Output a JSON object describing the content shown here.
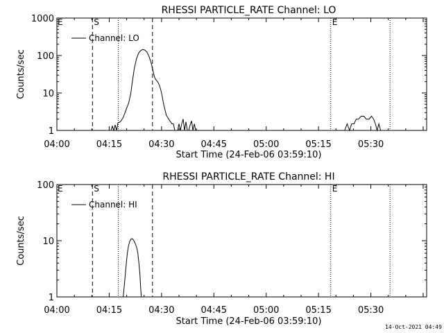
{
  "footer_timestamp": "14-Oct-2021 04:49",
  "chart_data": [
    {
      "type": "line",
      "title": "RHESSI PARTICLE_RATE Channel: LO",
      "xlabel": "Start Time (24-Feb-06 03:59:10)",
      "ylabel": "Counts/sec",
      "y_scale": "log",
      "xlim_min": [
        0,
        106
      ],
      "ylim": [
        1,
        1000
      ],
      "x_ticks": [
        "04:00",
        "04:15",
        "04:30",
        "04:45",
        "05:00",
        "05:15",
        "05:30"
      ],
      "y_ticks": [
        "1",
        "10",
        "100",
        "1000"
      ],
      "legend": "Channel: LO",
      "legend_position": "top-left",
      "markers": [
        {
          "label": "S",
          "x_min": 10.2,
          "style": "dashed"
        },
        {
          "label": "",
          "x_min": 17.6,
          "style": "dotted"
        },
        {
          "label": "",
          "x_min": 27.4,
          "style": "dashed"
        },
        {
          "label": "E",
          "x_min": 78.5,
          "style": "dotted"
        },
        {
          "label": "",
          "x_min": 95.5,
          "style": "dotted"
        }
      ],
      "edge_labels": [
        "E"
      ],
      "series": [
        {
          "values_xy": [
            [
              15.5,
              1
            ],
            [
              15.9,
              1.3
            ],
            [
              16.3,
              1
            ],
            [
              16.7,
              1.4
            ],
            [
              17.1,
              1
            ],
            [
              17.5,
              1.6
            ],
            [
              18.2,
              1.7
            ],
            [
              19.0,
              2.2
            ],
            [
              19.8,
              3.5
            ],
            [
              20.6,
              5.5
            ],
            [
              21.2,
              10
            ],
            [
              21.7,
              22
            ],
            [
              22.2,
              45
            ],
            [
              22.8,
              80
            ],
            [
              23.4,
              115
            ],
            [
              24.0,
              135
            ],
            [
              24.6,
              145
            ],
            [
              25.2,
              140
            ],
            [
              25.8,
              125
            ],
            [
              26.4,
              95
            ],
            [
              27.0,
              65
            ],
            [
              27.4,
              45
            ],
            [
              27.9,
              28
            ],
            [
              28.3,
              23
            ],
            [
              28.7,
              21
            ],
            [
              29.0,
              19
            ],
            [
              29.4,
              16
            ],
            [
              29.8,
              12
            ],
            [
              30.2,
              8
            ],
            [
              30.6,
              5
            ],
            [
              31.0,
              3.5
            ],
            [
              31.4,
              2.5
            ],
            [
              31.8,
              2.2
            ],
            [
              32.2,
              1.9
            ],
            [
              32.6,
              1.7
            ],
            [
              33.0,
              1.5
            ],
            [
              33.4,
              1.5
            ],
            [
              33.8,
              1
            ],
            [
              34.6,
              1
            ],
            [
              35.0,
              1.5
            ],
            [
              35.4,
              1
            ],
            [
              35.8,
              1.5
            ],
            [
              36.2,
              2
            ],
            [
              36.6,
              1
            ],
            [
              37.0,
              1.7
            ],
            [
              37.4,
              1
            ],
            [
              37.8,
              1
            ],
            [
              38.2,
              1.4
            ],
            [
              38.6,
              1.8
            ],
            [
              39.0,
              1
            ],
            [
              39.4,
              1.5
            ],
            [
              39.8,
              1
            ]
          ]
        },
        {
          "values_xy": [
            [
              82.5,
              1
            ],
            [
              83.2,
              1.5
            ],
            [
              83.9,
              1
            ],
            [
              84.5,
              1.5
            ],
            [
              85.2,
              1.5
            ],
            [
              85.8,
              2
            ],
            [
              86.5,
              2
            ],
            [
              87.2,
              2.4
            ],
            [
              88.0,
              2.4
            ],
            [
              88.7,
              2
            ],
            [
              89.5,
              2
            ],
            [
              90.2,
              2.4
            ],
            [
              90.8,
              2
            ],
            [
              91.3,
              1.5
            ],
            [
              91.8,
              1
            ],
            [
              92.3,
              1.5
            ],
            [
              92.8,
              1
            ]
          ]
        }
      ]
    },
    {
      "type": "line",
      "title": "RHESSI PARTICLE_RATE Channel: HI",
      "xlabel": "Start Time (24-Feb-06 03:59:10)",
      "ylabel": "Counts/sec",
      "y_scale": "log",
      "xlim_min": [
        0,
        106
      ],
      "ylim": [
        1,
        100
      ],
      "x_ticks": [
        "04:00",
        "04:15",
        "04:30",
        "04:45",
        "05:00",
        "05:15",
        "05:30"
      ],
      "y_ticks": [
        "1",
        "10",
        "100"
      ],
      "legend": "Channel: HI",
      "legend_position": "top-left",
      "markers": [
        {
          "label": "S",
          "x_min": 10.2,
          "style": "dashed"
        },
        {
          "label": "",
          "x_min": 17.6,
          "style": "dotted"
        },
        {
          "label": "",
          "x_min": 27.4,
          "style": "dashed"
        },
        {
          "label": "E",
          "x_min": 78.5,
          "style": "dotted"
        },
        {
          "label": "",
          "x_min": 95.5,
          "style": "dotted"
        }
      ],
      "edge_labels": [
        "E"
      ],
      "series": [
        {
          "values_xy": [
            [
              19.0,
              1
            ],
            [
              19.3,
              1.5
            ],
            [
              19.6,
              2.5
            ],
            [
              19.9,
              4
            ],
            [
              20.2,
              6
            ],
            [
              20.5,
              8
            ],
            [
              20.9,
              9.8
            ],
            [
              21.3,
              10.8
            ],
            [
              21.7,
              10.8
            ],
            [
              22.1,
              10
            ],
            [
              22.5,
              8.8
            ],
            [
              22.9,
              7.5
            ],
            [
              23.2,
              6
            ],
            [
              23.5,
              4
            ],
            [
              23.8,
              2.5
            ],
            [
              24.0,
              1.5
            ],
            [
              24.2,
              1
            ]
          ]
        }
      ]
    }
  ]
}
